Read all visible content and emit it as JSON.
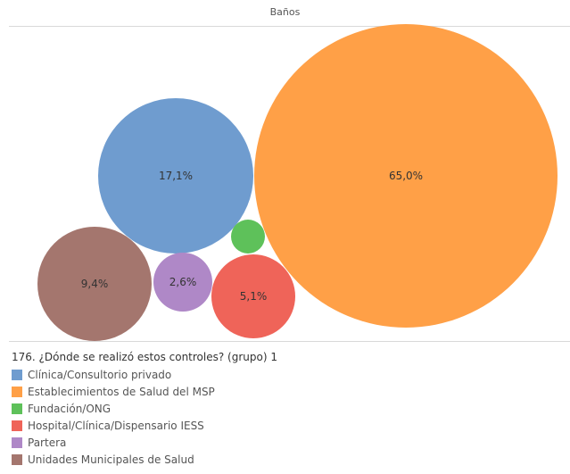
{
  "chart_data": {
    "type": "bubble",
    "title": "Baños",
    "legend_title": "176. ¿Dónde se realizó estos controles? (grupo) 1",
    "legend_position": "bottom-left",
    "series": [
      {
        "name": "Clínica/Consultorio privado",
        "value": 17.1,
        "label": "17,1%",
        "color": "#6f9ccf"
      },
      {
        "name": "Establecimientos de Salud del MSP",
        "value": 65.0,
        "label": "65,0%",
        "color": "#ffa047"
      },
      {
        "name": "Fundación/ONG",
        "value": 0.7,
        "label": "",
        "color": "#5ec15a"
      },
      {
        "name": "Hospital/Clínica/Dispensario IESS",
        "value": 5.1,
        "label": "5,1%",
        "color": "#ef6459"
      },
      {
        "name": "Partera",
        "value": 2.6,
        "label": "2,6%",
        "color": "#af88c7"
      },
      {
        "name": "Unidades Municipales de Salud",
        "value": 9.4,
        "label": "9,4%",
        "color": "#a4766e"
      }
    ]
  }
}
